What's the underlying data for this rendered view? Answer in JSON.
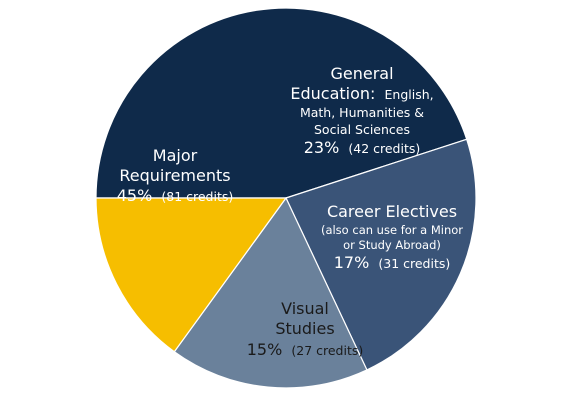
{
  "chart_data": {
    "type": "pie",
    "start_angle_deg": 180,
    "direction": "clockwise",
    "slices": [
      {
        "name": "Major Requirements",
        "percent": 45,
        "credits": 81,
        "color": "#0f2a4a",
        "label": {
          "lines": [
            "Major",
            "Requirements"
          ],
          "value": "45%",
          "detail": "(81 credits)"
        }
      },
      {
        "name": "General Education",
        "percent": 23,
        "credits": 42,
        "color": "#3a5478",
        "label": {
          "lines": [
            "General",
            "Education:",
            "English,",
            "Math, Humanities &",
            "Social Sciences"
          ],
          "value": "23%",
          "detail": "(42 credits)"
        }
      },
      {
        "name": "Career Electives",
        "percent": 17,
        "credits": 31,
        "color": "#6a819b",
        "label": {
          "lines": [
            "Career Electives",
            "(also can use for a Minor",
            "or Study Abroad)"
          ],
          "value": "17%",
          "detail": "(31 credits)"
        }
      },
      {
        "name": "Visual Studies",
        "percent": 15,
        "credits": 27,
        "color": "#f6be00",
        "label": {
          "lines": [
            "Visual",
            "Studies"
          ],
          "value": "15%",
          "detail": "(27 credits)"
        }
      }
    ]
  }
}
